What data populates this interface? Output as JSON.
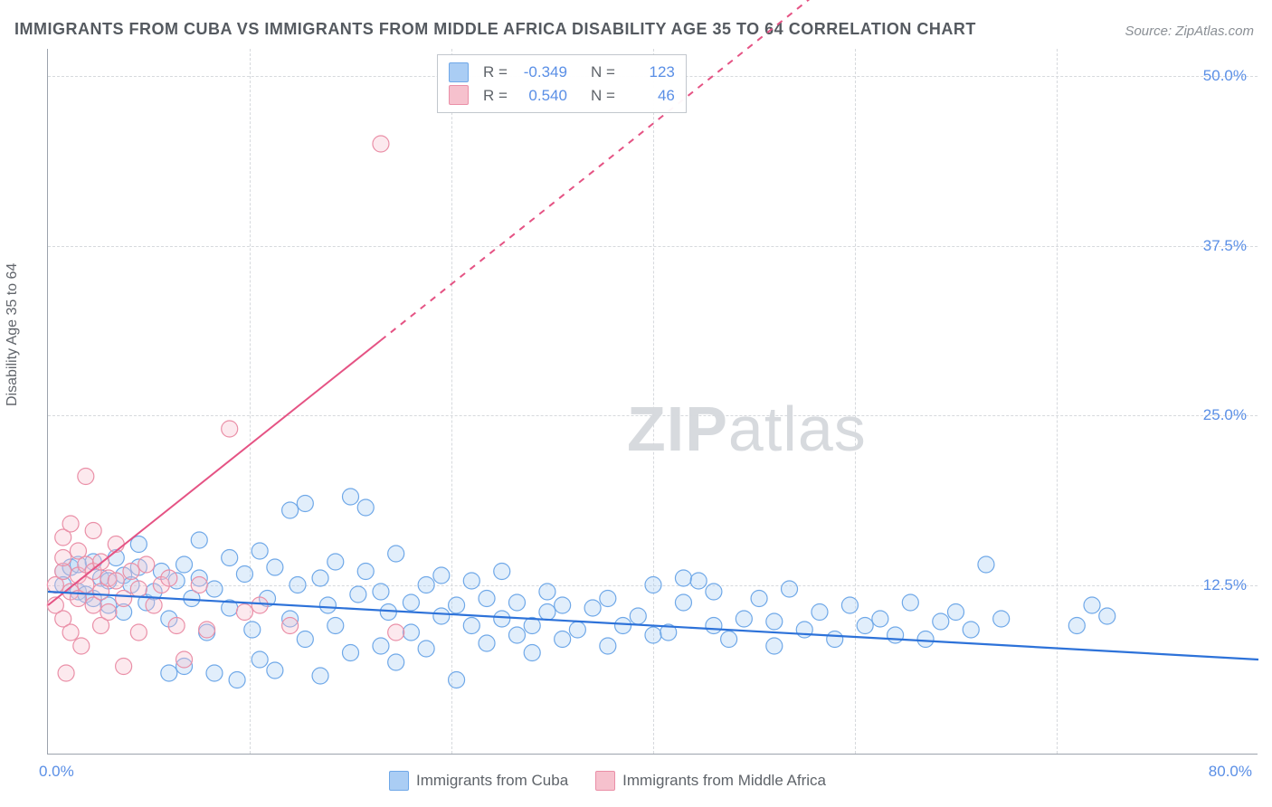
{
  "title": "IMMIGRANTS FROM CUBA VS IMMIGRANTS FROM MIDDLE AFRICA DISABILITY AGE 35 TO 64 CORRELATION CHART",
  "source": "Source: ZipAtlas.com",
  "y_axis_title": "Disability Age 35 to 64",
  "watermark_bold": "ZIP",
  "watermark_light": "atlas",
  "legend_bottom": {
    "series_a": {
      "label": "Immigrants from Cuba",
      "fill": "#aacdf4",
      "stroke": "#6fa8e8"
    },
    "series_b": {
      "label": "Immigrants from Middle Africa",
      "fill": "#f6c1cd",
      "stroke": "#ea8fa7"
    }
  },
  "stats_box": {
    "row1": {
      "swatch_fill": "#aacdf4",
      "swatch_stroke": "#6fa8e8",
      "r_label": "R =",
      "r_value": "-0.349",
      "n_label": "N =",
      "n_value": "123"
    },
    "row2": {
      "swatch_fill": "#f6c1cd",
      "swatch_stroke": "#ea8fa7",
      "r_label": "R =",
      "r_value": "0.540",
      "n_label": "N =",
      "n_value": "46"
    }
  },
  "chart": {
    "type": "scatter",
    "xlim": [
      0,
      80
    ],
    "ylim": [
      0,
      52
    ],
    "x_ticks": [
      0,
      80
    ],
    "x_tick_labels": [
      "0.0%",
      "80.0%"
    ],
    "y_ticks": [
      12.5,
      25.0,
      37.5,
      50.0
    ],
    "y_tick_labels": [
      "12.5%",
      "25.0%",
      "37.5%",
      "50.0%"
    ],
    "background_color": "#ffffff",
    "grid_color": "#d6d9dd",
    "marker_radius": 9,
    "series": {
      "cuba": {
        "fill": "#aacdf4",
        "stroke": "#6fa8e8",
        "trend": {
          "color": "#2d72d9",
          "width": 2.2,
          "x1": 0,
          "y1": 12.0,
          "x2": 80,
          "y2": 7.0,
          "dash_from_x": null
        },
        "points": [
          [
            1,
            13.5
          ],
          [
            1,
            12.5
          ],
          [
            1.5,
            13.8
          ],
          [
            2,
            14.0
          ],
          [
            2,
            12.0
          ],
          [
            2.5,
            11.8
          ],
          [
            3,
            14.2
          ],
          [
            3,
            11.5
          ],
          [
            3.5,
            13.0
          ],
          [
            4,
            12.8
          ],
          [
            4,
            11.0
          ],
          [
            4.5,
            14.5
          ],
          [
            5,
            13.2
          ],
          [
            5,
            10.5
          ],
          [
            5.5,
            12.5
          ],
          [
            6,
            13.8
          ],
          [
            6,
            15.5
          ],
          [
            6.5,
            11.2
          ],
          [
            7,
            12.0
          ],
          [
            7.5,
            13.5
          ],
          [
            8,
            6.0
          ],
          [
            8,
            10.0
          ],
          [
            8.5,
            12.8
          ],
          [
            9,
            14.0
          ],
          [
            9,
            6.5
          ],
          [
            9.5,
            11.5
          ],
          [
            10,
            13.0
          ],
          [
            10,
            15.8
          ],
          [
            10.5,
            9.0
          ],
          [
            11,
            12.2
          ],
          [
            11,
            6.0
          ],
          [
            12,
            14.5
          ],
          [
            12,
            10.8
          ],
          [
            12.5,
            5.5
          ],
          [
            13,
            13.3
          ],
          [
            13.5,
            9.2
          ],
          [
            14,
            15.0
          ],
          [
            14,
            7.0
          ],
          [
            14.5,
            11.5
          ],
          [
            15,
            13.8
          ],
          [
            15,
            6.2
          ],
          [
            16,
            10.0
          ],
          [
            16,
            18.0
          ],
          [
            16.5,
            12.5
          ],
          [
            17,
            8.5
          ],
          [
            17,
            18.5
          ],
          [
            18,
            13.0
          ],
          [
            18,
            5.8
          ],
          [
            18.5,
            11.0
          ],
          [
            19,
            14.2
          ],
          [
            19,
            9.5
          ],
          [
            20,
            19.0
          ],
          [
            20,
            7.5
          ],
          [
            20.5,
            11.8
          ],
          [
            21,
            13.5
          ],
          [
            21,
            18.2
          ],
          [
            22,
            8.0
          ],
          [
            22,
            12.0
          ],
          [
            22.5,
            10.5
          ],
          [
            23,
            14.8
          ],
          [
            23,
            6.8
          ],
          [
            24,
            11.2
          ],
          [
            24,
            9.0
          ],
          [
            25,
            12.5
          ],
          [
            25,
            7.8
          ],
          [
            26,
            10.2
          ],
          [
            26,
            13.2
          ],
          [
            27,
            5.5
          ],
          [
            27,
            11.0
          ],
          [
            28,
            9.5
          ],
          [
            28,
            12.8
          ],
          [
            29,
            8.2
          ],
          [
            29,
            11.5
          ],
          [
            30,
            10.0
          ],
          [
            30,
            13.5
          ],
          [
            31,
            8.8
          ],
          [
            31,
            11.2
          ],
          [
            32,
            9.5
          ],
          [
            32,
            7.5
          ],
          [
            33,
            10.5
          ],
          [
            33,
            12.0
          ],
          [
            34,
            8.5
          ],
          [
            34,
            11.0
          ],
          [
            35,
            9.2
          ],
          [
            36,
            10.8
          ],
          [
            37,
            8.0
          ],
          [
            37,
            11.5
          ],
          [
            38,
            9.5
          ],
          [
            39,
            10.2
          ],
          [
            40,
            8.8
          ],
          [
            40,
            12.5
          ],
          [
            41,
            9.0
          ],
          [
            42,
            11.2
          ],
          [
            42,
            13.0
          ],
          [
            43,
            12.8
          ],
          [
            44,
            9.5
          ],
          [
            44,
            12.0
          ],
          [
            45,
            8.5
          ],
          [
            46,
            10.0
          ],
          [
            47,
            11.5
          ],
          [
            48,
            9.8
          ],
          [
            48,
            8.0
          ],
          [
            49,
            12.2
          ],
          [
            50,
            9.2
          ],
          [
            51,
            10.5
          ],
          [
            52,
            8.5
          ],
          [
            53,
            11.0
          ],
          [
            54,
            9.5
          ],
          [
            55,
            10.0
          ],
          [
            56,
            8.8
          ],
          [
            57,
            11.2
          ],
          [
            58,
            8.5
          ],
          [
            59,
            9.8
          ],
          [
            60,
            10.5
          ],
          [
            61,
            9.2
          ],
          [
            62,
            14.0
          ],
          [
            63,
            10.0
          ],
          [
            68,
            9.5
          ],
          [
            69,
            11.0
          ],
          [
            70,
            10.2
          ]
        ]
      },
      "middle_africa": {
        "fill": "#f6c1cd",
        "stroke": "#ea8fa7",
        "trend": {
          "color": "#e55384",
          "width": 2.0,
          "x1": 0,
          "y1": 11.0,
          "x2": 80,
          "y2": 82.0,
          "dash_from_x": 22
        },
        "points": [
          [
            0.5,
            12.5
          ],
          [
            0.5,
            11.0
          ],
          [
            1,
            13.5
          ],
          [
            1,
            14.5
          ],
          [
            1,
            10.0
          ],
          [
            1,
            16.0
          ],
          [
            1.2,
            6.0
          ],
          [
            1.5,
            12.0
          ],
          [
            1.5,
            17.0
          ],
          [
            1.5,
            9.0
          ],
          [
            2,
            13.2
          ],
          [
            2,
            11.5
          ],
          [
            2,
            15.0
          ],
          [
            2.2,
            8.0
          ],
          [
            2.5,
            14.0
          ],
          [
            2.5,
            12.5
          ],
          [
            2.5,
            20.5
          ],
          [
            3,
            11.0
          ],
          [
            3,
            13.5
          ],
          [
            3,
            16.5
          ],
          [
            3.5,
            12.0
          ],
          [
            3.5,
            9.5
          ],
          [
            3.5,
            14.2
          ],
          [
            4,
            13.0
          ],
          [
            4,
            10.5
          ],
          [
            4.5,
            12.8
          ],
          [
            4.5,
            15.5
          ],
          [
            5,
            11.5
          ],
          [
            5,
            6.5
          ],
          [
            5.5,
            13.5
          ],
          [
            6,
            12.2
          ],
          [
            6,
            9.0
          ],
          [
            6.5,
            14.0
          ],
          [
            7,
            11.0
          ],
          [
            7.5,
            12.5
          ],
          [
            8,
            13.0
          ],
          [
            8.5,
            9.5
          ],
          [
            9,
            7.0
          ],
          [
            10,
            12.5
          ],
          [
            10.5,
            9.2
          ],
          [
            12,
            24.0
          ],
          [
            13,
            10.5
          ],
          [
            14,
            11.0
          ],
          [
            16,
            9.5
          ],
          [
            22,
            45.0
          ],
          [
            23,
            9.0
          ]
        ]
      }
    }
  }
}
